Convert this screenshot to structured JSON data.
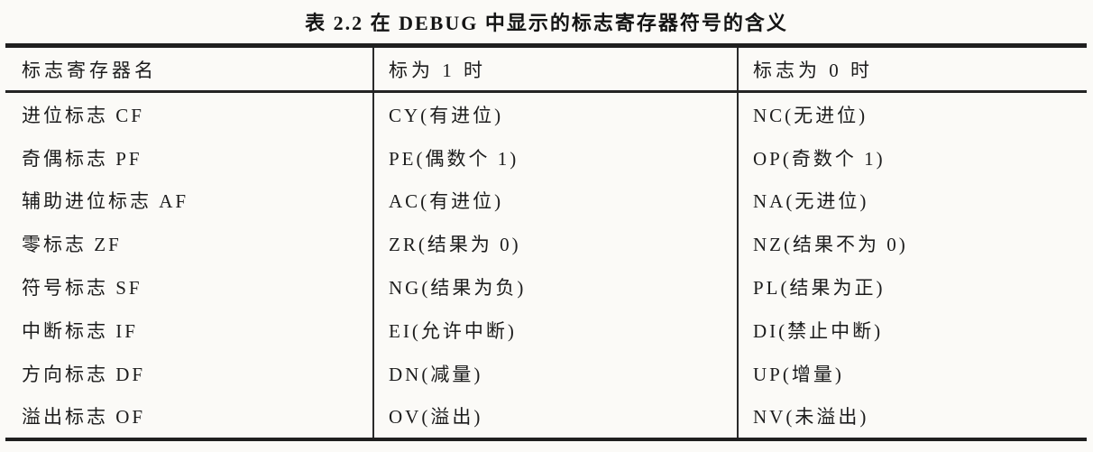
{
  "title": "表 2.2  在 DEBUG 中显示的标志寄存器符号的含义",
  "table": {
    "columns": [
      "标志寄存器名",
      "标为 1 时",
      "标志为 0 时"
    ],
    "rows": [
      [
        "进位标志 CF",
        "CY(有进位)",
        "NC(无进位)"
      ],
      [
        "奇偶标志 PF",
        "PE(偶数个 1)",
        "OP(奇数个 1)"
      ],
      [
        "辅助进位标志 AF",
        "AC(有进位)",
        "NA(无进位)"
      ],
      [
        "零标志 ZF",
        "ZR(结果为 0)",
        "NZ(结果不为 0)"
      ],
      [
        "符号标志 SF",
        "NG(结果为负)",
        "PL(结果为正)"
      ],
      [
        "中断标志 IF",
        "EI(允许中断)",
        "DI(禁止中断)"
      ],
      [
        "方向标志 DF",
        "DN(减量)",
        "UP(增量)"
      ],
      [
        "溢出标志 OF",
        "OV(溢出)",
        "NV(未溢出)"
      ]
    ]
  },
  "colors": {
    "background": "#fbfaf7",
    "text": "#1c1c1c",
    "rule": "#1f1f1f"
  }
}
